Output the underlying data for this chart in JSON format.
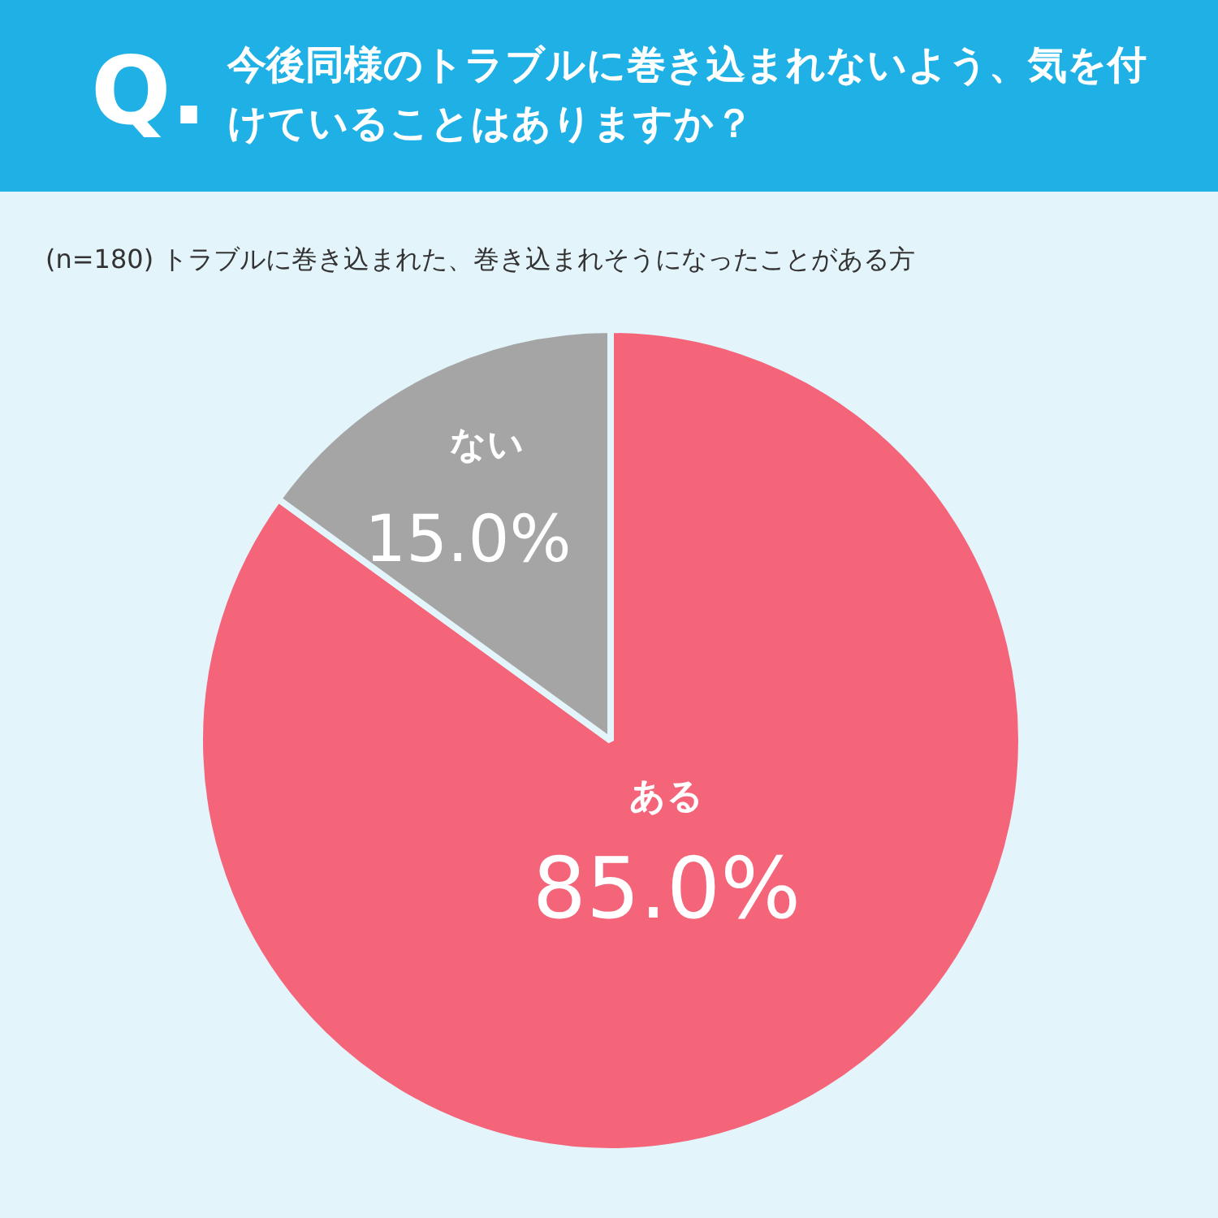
{
  "chart_data": {
    "type": "pie",
    "title": "今後同様のトラブルに巻き込まれないよう、気を付けていることはありますか？",
    "subtitle": "(n=180) トラブルに巻き込まれた、巻き込まれそうになったことがある方",
    "annotations": [
      "Q."
    ],
    "categories": [
      "ある",
      "ない"
    ],
    "values": [
      85,
      15
    ],
    "colors": [
      "#f4657a",
      "#a5a5a5"
    ],
    "value_labels": [
      "85.0%",
      "15.0%"
    ],
    "legend": false
  }
}
